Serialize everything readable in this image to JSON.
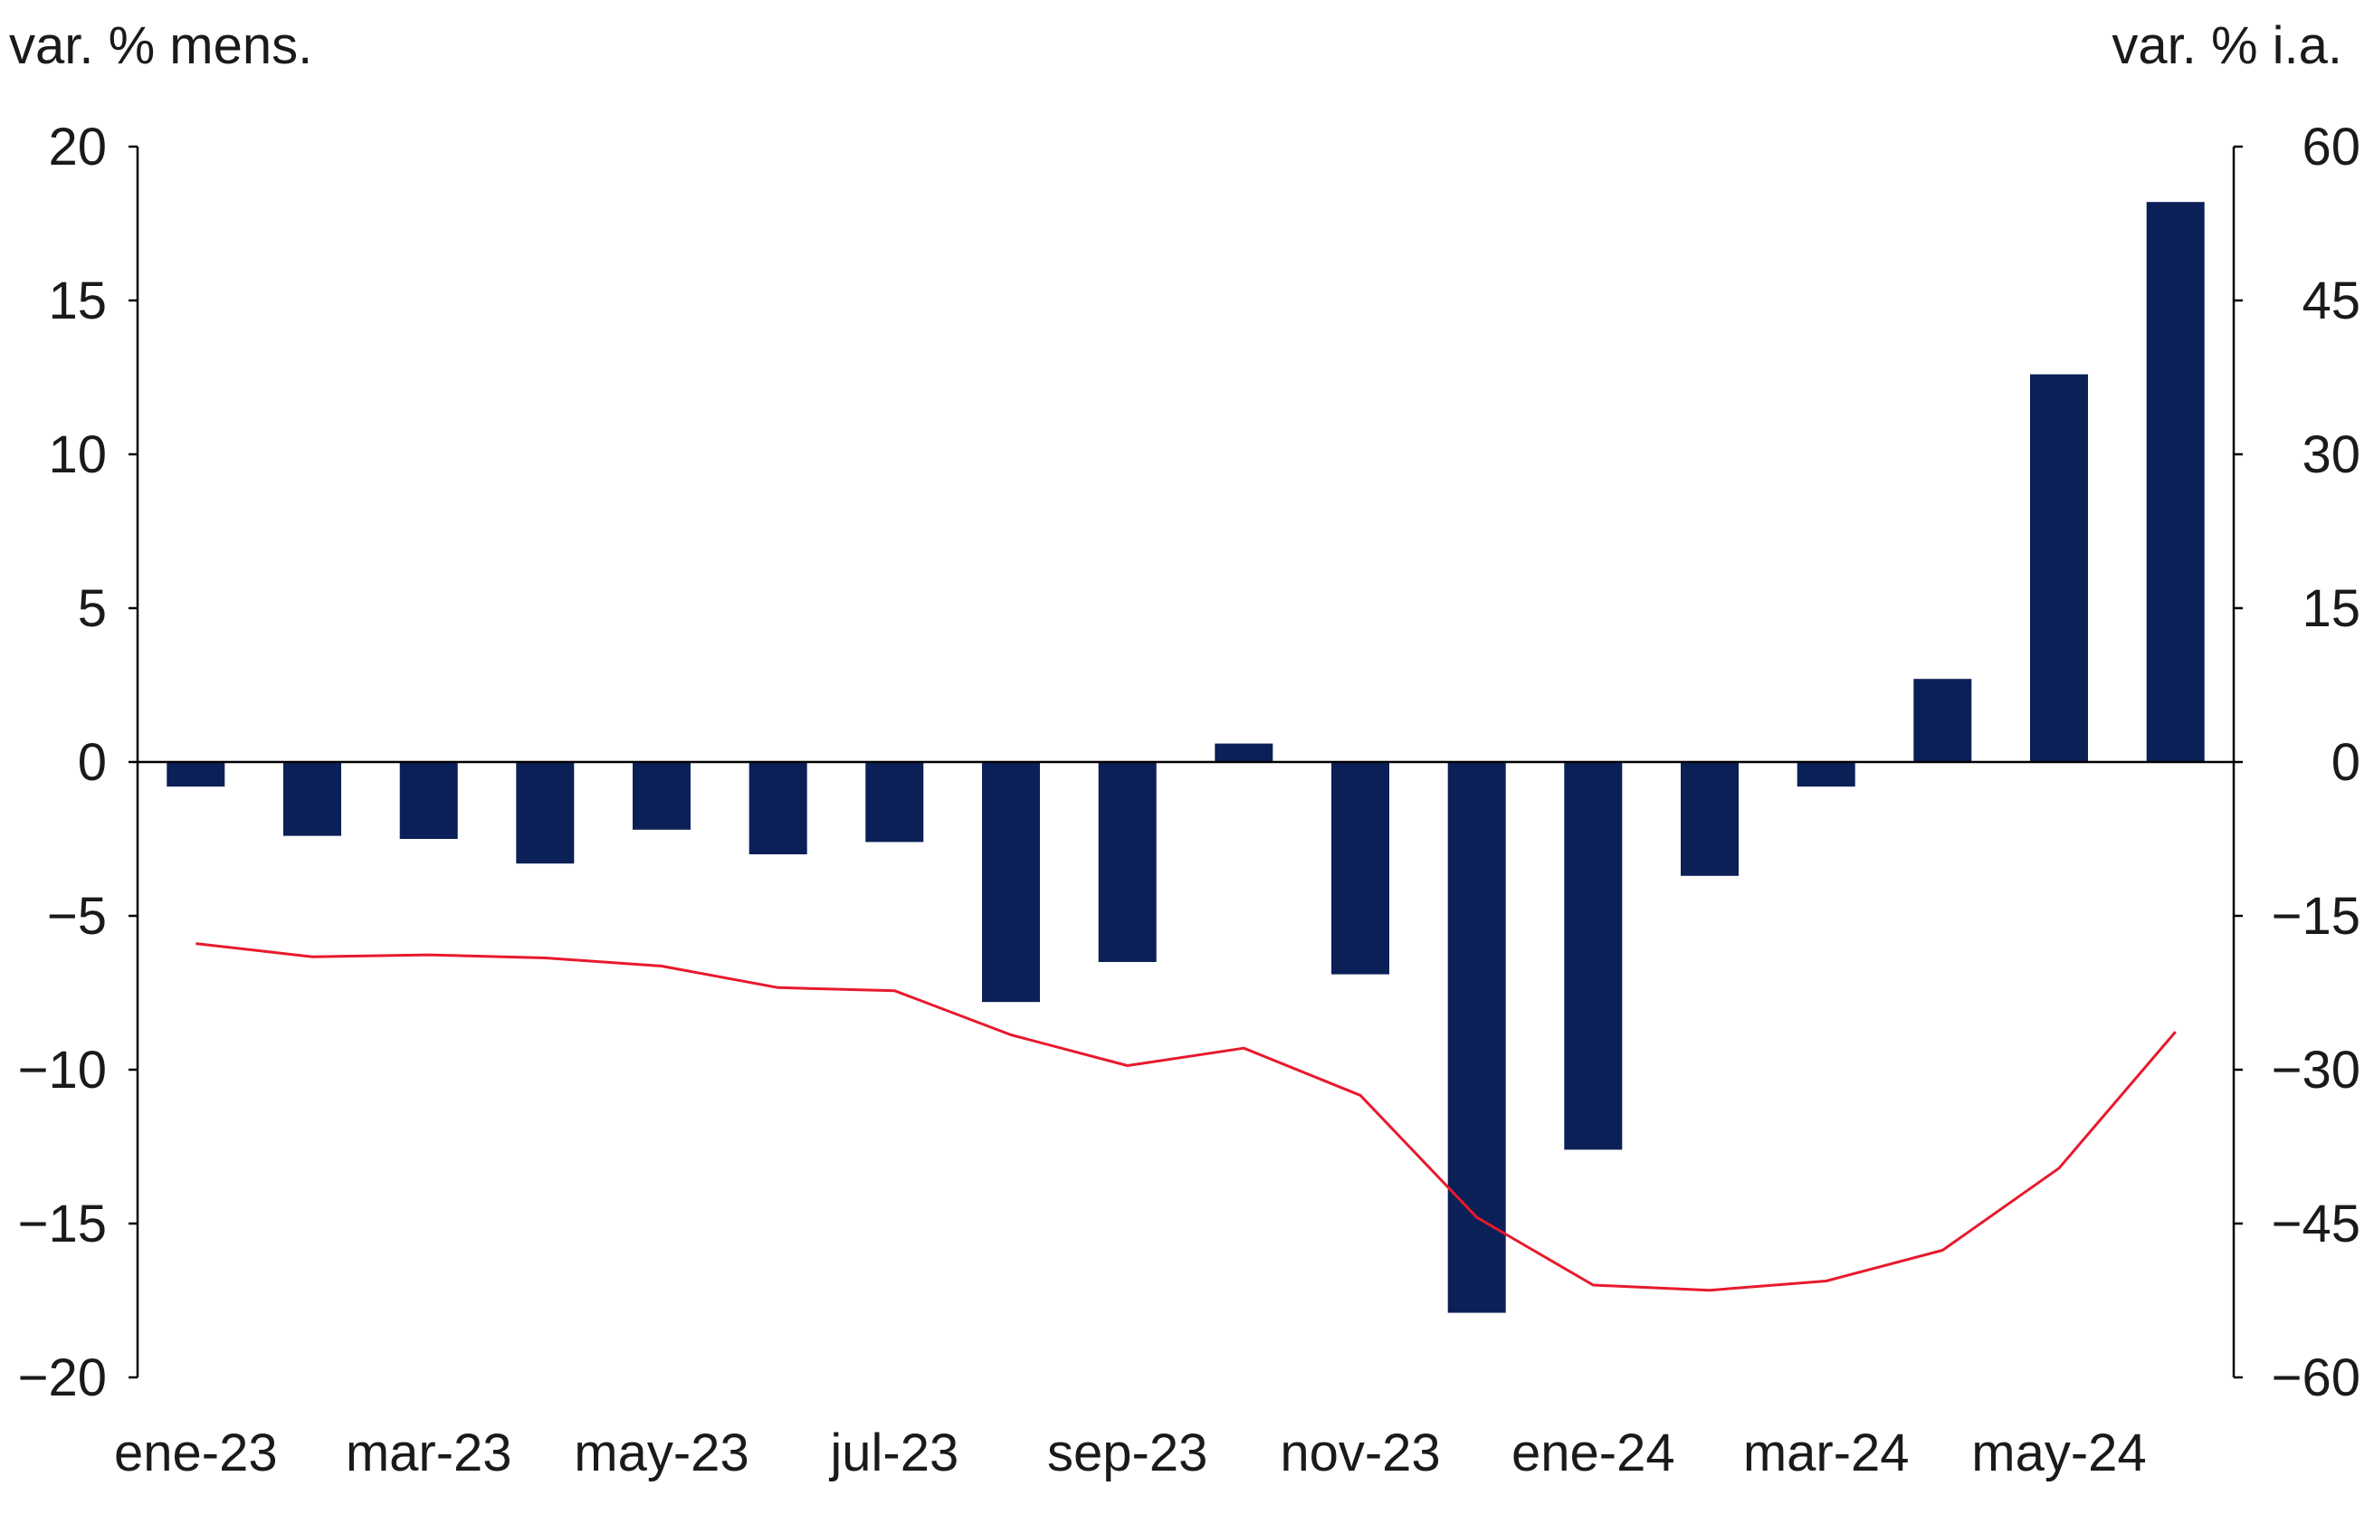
{
  "chart_data": {
    "type": "bar",
    "categories": [
      "ene-23",
      "feb-23",
      "mar-23",
      "abr-23",
      "may-23",
      "jun-23",
      "jul-23",
      "ago-23",
      "sep-23",
      "oct-23",
      "nov-23",
      "dic-23",
      "ene-24",
      "feb-24",
      "mar-24",
      "abr-24",
      "may-24",
      "jun-24"
    ],
    "x_tick_labels": [
      "ene-23",
      "mar-23",
      "may-23",
      "jul-23",
      "sep-23",
      "nov-23",
      "ene-24",
      "mar-24",
      "may-24"
    ],
    "left_axis": {
      "label": "var. % mens.",
      "ylim": [
        -20,
        20
      ],
      "ticks": [
        20,
        15,
        10,
        5,
        0,
        -5,
        -10,
        -15,
        -20
      ],
      "tick_labels": [
        "20",
        "15",
        "10",
        "5",
        "0",
        "−5",
        "−10",
        "−15",
        "−20"
      ]
    },
    "right_axis": {
      "label": "var. % i.a.",
      "ylim": [
        -60,
        60
      ],
      "ticks": [
        60,
        45,
        30,
        15,
        0,
        -15,
        -30,
        -45,
        -60
      ],
      "tick_labels": [
        "60",
        "45",
        "30",
        "15",
        "0",
        "−15",
        "−30",
        "−45",
        "−60"
      ]
    },
    "series": [
      {
        "type": "bar",
        "axis": "left",
        "color": "#0b2057",
        "values": [
          -0.8,
          -2.4,
          -2.5,
          -3.3,
          -2.2,
          -3.0,
          -2.6,
          -7.8,
          -6.5,
          0.6,
          -6.9,
          -17.9,
          -12.6,
          -3.7,
          -0.8,
          2.7,
          12.6,
          18.2
        ]
      },
      {
        "type": "line",
        "axis": "right",
        "color": "#e8192c",
        "values": [
          -17.7,
          -19.0,
          -18.8,
          -19.1,
          -19.9,
          -22.0,
          -22.3,
          -26.6,
          -29.6,
          -27.9,
          -32.5,
          -44.4,
          -51.0,
          -51.5,
          -50.6,
          -47.6,
          -39.6,
          -26.3
        ]
      }
    ],
    "grid": false,
    "legend": "none"
  }
}
